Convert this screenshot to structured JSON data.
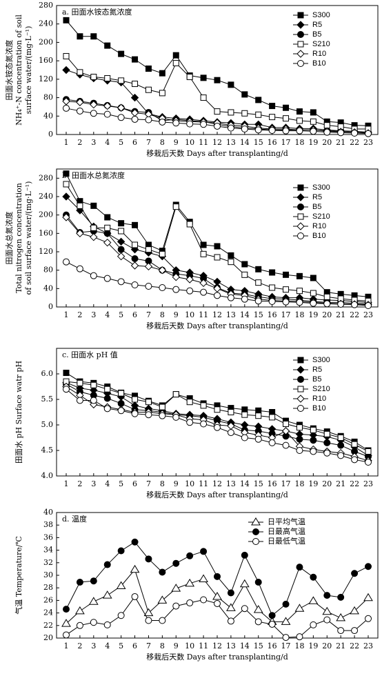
{
  "chart_data": [
    {
      "type": "line",
      "title": "a. 田面水铵态氮浓度",
      "ylabel": [
        "田面水铵态氮浓度",
        "NH₄⁺-N concentration of soil",
        "surface water/(mg·L⁻¹)"
      ],
      "xlabel": "移栽后天数 Days after transplanting/d",
      "categories": [
        "1",
        "2",
        "3",
        "4",
        "5",
        "6",
        "7",
        "8",
        "9",
        "10",
        "11",
        "12",
        "13",
        "14",
        "15",
        "16",
        "17",
        "18",
        "19",
        "20",
        "21",
        "22",
        "23"
      ],
      "ylim": [
        0,
        280
      ],
      "yticks": [
        0,
        40,
        80,
        120,
        160,
        200,
        240,
        280
      ],
      "series": [
        {
          "name": "S300",
          "color": "#000",
          "marker": "square",
          "filled": true,
          "values": [
            248,
            213,
            213,
            193,
            175,
            163,
            143,
            133,
            172,
            128,
            123,
            118,
            108,
            87,
            75,
            62,
            58,
            50,
            48,
            28,
            26,
            20,
            19
          ]
        },
        {
          "name": "R5",
          "color": "#000",
          "marker": "diamond",
          "filled": true,
          "values": [
            140,
            130,
            122,
            117,
            113,
            80,
            45,
            38,
            35,
            33,
            30,
            27,
            25,
            22,
            22,
            15,
            15,
            13,
            13,
            10,
            8,
            7,
            5
          ]
        },
        {
          "name": "B5",
          "color": "#000",
          "marker": "circle",
          "filled": true,
          "values": [
            76,
            72,
            68,
            63,
            58,
            50,
            48,
            30,
            33,
            30,
            28,
            22,
            17,
            14,
            12,
            10,
            10,
            10,
            10,
            8,
            7,
            5,
            4
          ]
        },
        {
          "name": "S210",
          "color": "#000",
          "marker": "square",
          "filled": false,
          "values": [
            170,
            135,
            125,
            122,
            117,
            110,
            97,
            90,
            155,
            125,
            80,
            50,
            48,
            46,
            43,
            38,
            35,
            30,
            28,
            20,
            17,
            12,
            12
          ]
        },
        {
          "name": "R10",
          "color": "#000",
          "marker": "diamond",
          "filled": false,
          "values": [
            72,
            70,
            65,
            62,
            58,
            47,
            44,
            35,
            30,
            28,
            27,
            25,
            20,
            18,
            14,
            12,
            12,
            10,
            10,
            7,
            6,
            5,
            3
          ]
        },
        {
          "name": "B10",
          "color": "#000",
          "marker": "circle",
          "filled": false,
          "values": [
            57,
            51,
            46,
            44,
            37,
            33,
            32,
            27,
            25,
            23,
            22,
            18,
            14,
            12,
            10,
            9,
            8,
            8,
            7,
            5,
            4,
            3,
            2
          ]
        }
      ]
    },
    {
      "type": "line",
      "title": "b. 田面水总氮浓度",
      "ylabel": [
        "田面水总氮浓度",
        "Total nitrogen concentration",
        "of soil surface water/(mg·L⁻¹)"
      ],
      "xlabel": "移栽后天数 Days after transplanting/d",
      "categories": [
        "1",
        "2",
        "3",
        "4",
        "5",
        "6",
        "7",
        "8",
        "9",
        "10",
        "11",
        "12",
        "13",
        "14",
        "15",
        "16",
        "17",
        "18",
        "19",
        "20",
        "21",
        "22",
        "23"
      ],
      "ylim": [
        0,
        300
      ],
      "yticks": [
        0,
        40,
        80,
        120,
        160,
        200,
        240,
        280
      ],
      "series": [
        {
          "name": "S300",
          "color": "#000",
          "marker": "square",
          "filled": true,
          "values": [
            290,
            230,
            220,
            195,
            182,
            178,
            135,
            122,
            222,
            185,
            135,
            132,
            112,
            93,
            82,
            75,
            70,
            67,
            63,
            32,
            28,
            25,
            22
          ]
        },
        {
          "name": "R5",
          "color": "#000",
          "marker": "diamond",
          "filled": true,
          "values": [
            240,
            210,
            175,
            160,
            142,
            125,
            118,
            110,
            80,
            75,
            68,
            55,
            38,
            35,
            28,
            22,
            20,
            20,
            17,
            15,
            14,
            12,
            10
          ]
        },
        {
          "name": "B5",
          "color": "#000",
          "marker": "circle",
          "filled": true,
          "values": [
            200,
            162,
            165,
            160,
            125,
            105,
            100,
            80,
            72,
            68,
            62,
            42,
            30,
            28,
            22,
            18,
            17,
            15,
            12,
            10,
            10,
            8,
            7
          ]
        },
        {
          "name": "S210",
          "color": "#000",
          "marker": "square",
          "filled": false,
          "values": [
            267,
            220,
            172,
            172,
            165,
            135,
            125,
            115,
            218,
            180,
            115,
            108,
            98,
            70,
            53,
            42,
            38,
            35,
            30,
            22,
            18,
            15,
            13
          ]
        },
        {
          "name": "R10",
          "color": "#000",
          "marker": "diamond",
          "filled": false,
          "values": [
            195,
            160,
            152,
            140,
            110,
            90,
            88,
            80,
            65,
            60,
            52,
            40,
            28,
            25,
            17,
            14,
            13,
            12,
            10,
            8,
            7,
            6,
            5
          ]
        },
        {
          "name": "B10",
          "color": "#000",
          "marker": "circle",
          "filled": false,
          "values": [
            98,
            83,
            68,
            62,
            55,
            48,
            45,
            42,
            38,
            35,
            32,
            25,
            20,
            17,
            13,
            12,
            11,
            10,
            8,
            7,
            6,
            5,
            3
          ]
        }
      ]
    },
    {
      "type": "line",
      "title": "c. 田面水 pH 值",
      "ylabel": [
        "田面水 pH Surface watr pH"
      ],
      "xlabel": "移栽后天数 Days after transplanting/d",
      "categories": [
        "1",
        "2",
        "3",
        "4",
        "5",
        "6",
        "7",
        "8",
        "9",
        "10",
        "11",
        "12",
        "13",
        "14",
        "15",
        "16",
        "17",
        "18",
        "19",
        "20",
        "21",
        "22",
        "23"
      ],
      "ylim": [
        4,
        6.5
      ],
      "yticks": [
        {
          "value": 4,
          "label": "4.0"
        },
        4.5,
        {
          "value": 5,
          "label": "5.0"
        },
        5.5,
        {
          "value": 6,
          "label": "6.0"
        }
      ],
      "series": [
        {
          "name": "S300",
          "color": "#000",
          "marker": "square",
          "filled": true,
          "values": [
            6.02,
            5.85,
            5.82,
            5.75,
            5.63,
            5.57,
            5.47,
            5.38,
            5.6,
            5.52,
            5.42,
            5.38,
            5.33,
            5.3,
            5.28,
            5.25,
            5.08,
            5,
            4.93,
            4.87,
            4.78,
            4.67,
            4.5
          ]
        },
        {
          "name": "R5",
          "color": "#000",
          "marker": "diamond",
          "filled": true,
          "values": [
            5.83,
            5.72,
            5.68,
            5.62,
            5.55,
            5.38,
            5.32,
            5.28,
            5.22,
            5.2,
            5.18,
            5.12,
            5.05,
            5,
            4.97,
            4.92,
            4.88,
            4.82,
            4.8,
            4.77,
            4.7,
            4.57,
            4.4
          ]
        },
        {
          "name": "B5",
          "color": "#000",
          "marker": "circle",
          "filled": true,
          "values": [
            5.8,
            5.65,
            5.58,
            5.52,
            5.42,
            5.3,
            5.28,
            5.25,
            5.2,
            5.18,
            5.15,
            5.08,
            5.02,
            4.9,
            4.88,
            4.83,
            4.78,
            4.72,
            4.7,
            4.65,
            4.6,
            4.48,
            4.38
          ]
        },
        {
          "name": "S210",
          "color": "#000",
          "marker": "square",
          "filled": false,
          "values": [
            5.85,
            5.82,
            5.78,
            5.7,
            5.62,
            5.5,
            5.45,
            5.35,
            5.6,
            5.45,
            5.38,
            5.3,
            5.25,
            5.2,
            5.18,
            5.15,
            5.02,
            4.95,
            4.9,
            4.82,
            4.75,
            4.62,
            4.48
          ]
        },
        {
          "name": "R10",
          "color": "#000",
          "marker": "diamond",
          "filled": false,
          "values": [
            5.75,
            5.58,
            5.4,
            5.35,
            5.3,
            5.25,
            5.25,
            5.22,
            5.2,
            5.12,
            5.1,
            5,
            4.98,
            4.85,
            4.8,
            4.75,
            4.88,
            4.58,
            4.52,
            4.48,
            4.45,
            4.38,
            4.3
          ]
        },
        {
          "name": "B10",
          "color": "#000",
          "marker": "circle",
          "filled": false,
          "values": [
            5.7,
            5.48,
            5.48,
            5.32,
            5.28,
            5.22,
            5.2,
            5.18,
            5.15,
            5.05,
            5.02,
            4.95,
            4.85,
            4.75,
            4.72,
            4.65,
            4.6,
            4.5,
            4.48,
            4.45,
            4.4,
            4.32,
            4.27
          ]
        }
      ]
    },
    {
      "type": "line",
      "title": "d. 温度",
      "ylabel": [
        "气温 Temperature/℃"
      ],
      "xlabel": "移栽后天数 Days after transplanting/d",
      "categories": [
        "1",
        "2",
        "3",
        "4",
        "5",
        "6",
        "7",
        "8",
        "9",
        "10",
        "11",
        "12",
        "13",
        "14",
        "15",
        "16",
        "17",
        "18",
        "19",
        "20",
        "21",
        "22",
        "23"
      ],
      "ylim": [
        20,
        40
      ],
      "yticks": [
        20,
        22,
        24,
        26,
        28,
        30,
        32,
        34,
        36,
        38,
        40
      ],
      "series": [
        {
          "name": "日平均气温",
          "color": "#000",
          "marker": "triangle",
          "filled": false,
          "values": [
            22.3,
            24.3,
            25.8,
            26.8,
            28.3,
            30.9,
            24,
            26,
            27.9,
            28.7,
            29.4,
            26.6,
            24.8,
            28.6,
            24.5,
            22.6,
            22.6,
            24.7,
            25.9,
            24.2,
            23.2,
            24.3,
            26.4
          ]
        },
        {
          "name": "日最高气温",
          "color": "#000",
          "marker": "circle",
          "filled": true,
          "values": [
            24.6,
            28.9,
            29.1,
            31.7,
            33.9,
            35.3,
            32.6,
            30.5,
            31.9,
            33.1,
            33.8,
            29.8,
            27.2,
            33.2,
            28.9,
            23.6,
            25.4,
            31.3,
            29.7,
            26.8,
            26.5,
            30.3,
            31.4
          ]
        },
        {
          "name": "日最低气温",
          "color": "#000",
          "marker": "circle",
          "filled": false,
          "values": [
            20.5,
            22,
            22.5,
            22.1,
            23.6,
            26.6,
            22.8,
            22.8,
            25.1,
            25.6,
            26.1,
            25.5,
            22.7,
            24.7,
            22.6,
            22.2,
            20.1,
            20.2,
            22.1,
            22.9,
            21.2,
            21.2,
            23.1
          ]
        }
      ]
    }
  ]
}
